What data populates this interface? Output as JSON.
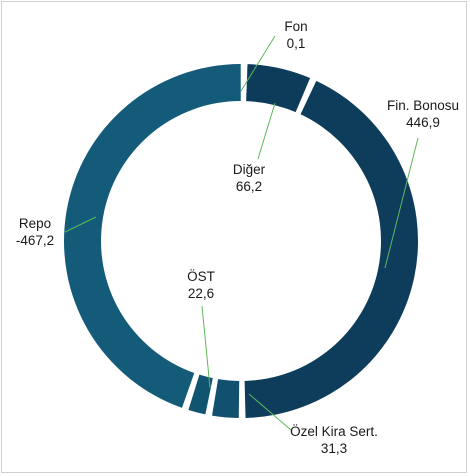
{
  "chart_data": {
    "type": "donut",
    "unit": "",
    "segments": [
      {
        "name": "Fon",
        "value": 0.1,
        "value_label": "0,1",
        "color": "#0d3b5a"
      },
      {
        "name": "Diğer",
        "value": 66.2,
        "value_label": "66,2",
        "color": "#0d3b5a"
      },
      {
        "name": "Fin. Bonosu",
        "value": 446.9,
        "value_label": "446,9",
        "color": "#0e3d5c"
      },
      {
        "name": "Özel Kira Sert.",
        "value": 31.3,
        "value_label": "31,3",
        "color": "#11506e"
      },
      {
        "name": "ÖST",
        "value": 22.6,
        "value_label": "22,6",
        "color": "#115470"
      },
      {
        "name": "Repo",
        "value": -467.2,
        "value_label": "-467,2",
        "color": "#135b78"
      }
    ],
    "leader_color": "#5cb85c"
  }
}
